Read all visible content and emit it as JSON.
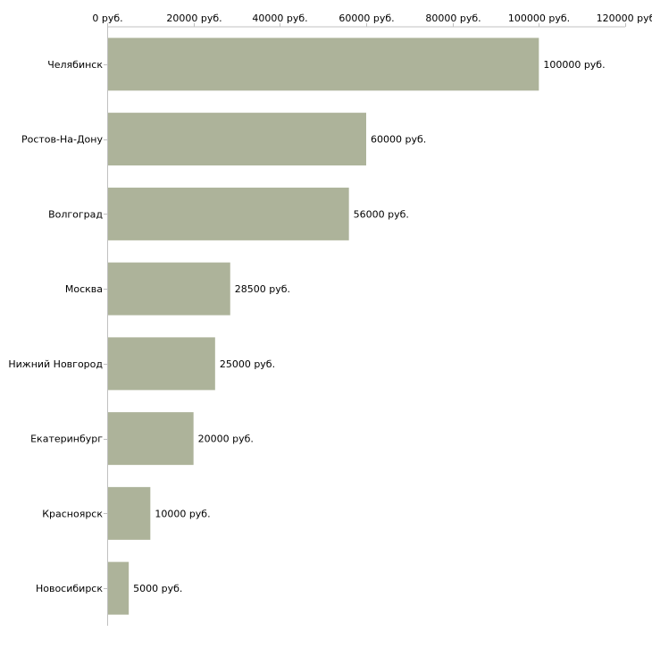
{
  "chart_data": {
    "type": "bar",
    "orientation": "horizontal",
    "title": "",
    "xlabel": "",
    "ylabel": "",
    "xlim": [
      0,
      120000
    ],
    "tick_values": [
      0,
      20000,
      40000,
      60000,
      80000,
      100000,
      120000
    ],
    "tick_labels": [
      "0 руб.",
      "20000 руб.",
      "40000 руб.",
      "60000 руб.",
      "80000 руб.",
      "100000 руб.",
      "120000 руб"
    ],
    "categories": [
      "Челябинск",
      "Ростов-На-Дону",
      "Волгоград",
      "Москва",
      "Нижний Новгород",
      "Екатеринбург",
      "Красноярск",
      "Новосибирск"
    ],
    "values": [
      100000,
      60000,
      56000,
      28500,
      25000,
      20000,
      10000,
      5000
    ],
    "value_labels": [
      "100000 руб.",
      "60000 руб.",
      "56000 руб.",
      "28500 руб.",
      "25000 руб.",
      "20000 руб.",
      "10000 руб.",
      "5000 руб."
    ],
    "bar_color": "#adb39a",
    "axis_color": "#c0c0c0",
    "grid": false,
    "legend": "none"
  }
}
